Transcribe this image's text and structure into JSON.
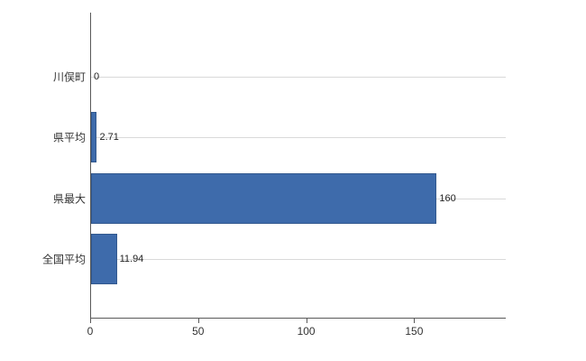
{
  "chart_data": {
    "type": "bar",
    "orientation": "horizontal",
    "title": "",
    "xlabel": "",
    "ylabel": "",
    "categories": [
      "川俣町",
      "県平均",
      "県最大",
      "全国平均"
    ],
    "values": [
      0,
      2.71,
      160,
      11.94
    ],
    "value_labels": [
      "0",
      "2.71",
      "160",
      "11.94"
    ],
    "xlim": [
      0,
      192
    ],
    "x_ticks": [
      0,
      50,
      100,
      150
    ],
    "bar_color": "#3e6bab",
    "grid": "horizontal line per category",
    "legend_position": "none",
    "background_color": "#ffffff"
  }
}
